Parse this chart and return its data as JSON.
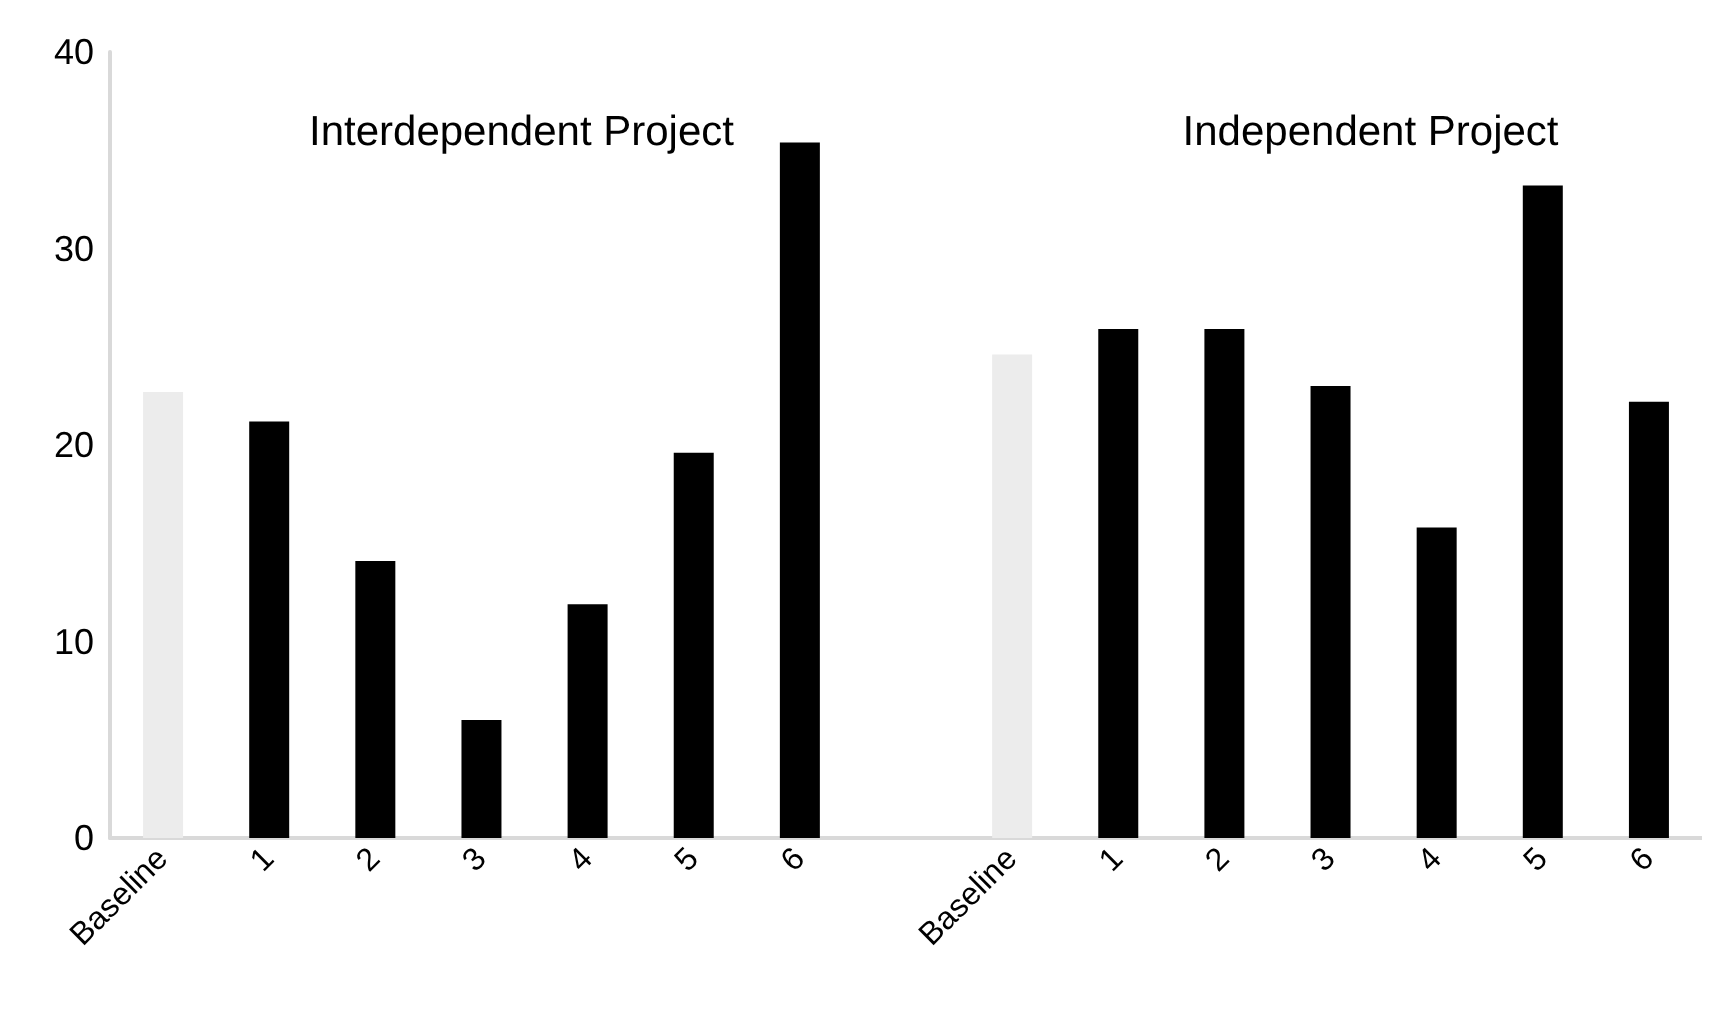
{
  "chart_data": {
    "type": "bar",
    "categories": [
      "Baseline",
      "1",
      "2",
      "3",
      "4",
      "5",
      "6",
      null,
      "Baseline",
      "1",
      "2",
      "3",
      "4",
      "5",
      "6"
    ],
    "values": [
      22.7,
      21.2,
      14.1,
      6.0,
      11.9,
      19.6,
      35.4,
      null,
      24.6,
      25.9,
      25.9,
      23.0,
      15.8,
      33.2,
      22.2
    ],
    "colors": [
      "#ececec",
      "#000000",
      "#000000",
      "#000000",
      "#000000",
      "#000000",
      "#000000",
      "#000000",
      "#ececec",
      "#000000",
      "#000000",
      "#000000",
      "#000000",
      "#000000",
      "#000000"
    ],
    "annotations": [
      "Interdependent Project",
      "Independent Project"
    ],
    "ylim": [
      0,
      40
    ],
    "yticks": [
      0,
      10,
      20,
      30,
      40
    ],
    "grid": false
  }
}
